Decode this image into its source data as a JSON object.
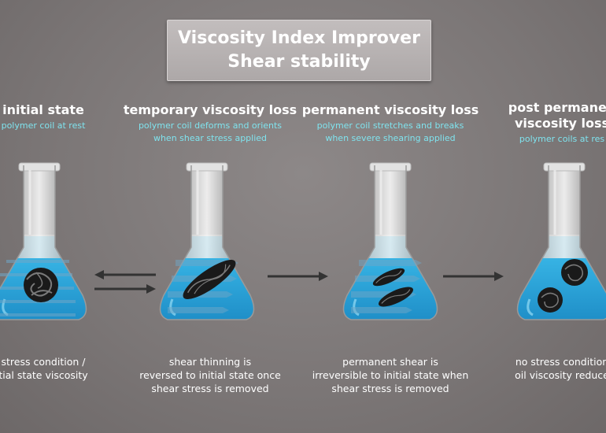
{
  "title": {
    "line1": "Viscosity Index Improver",
    "line2": "Shear stability"
  },
  "stages": [
    {
      "heading": [
        "initial state"
      ],
      "sub": [
        "polymer coil at rest"
      ],
      "caption": [
        "stress condition /",
        "tial state viscosity"
      ]
    },
    {
      "heading": [
        "temporary viscosity loss"
      ],
      "sub": [
        "polymer coil deforms and orients",
        "when shear stress applied"
      ],
      "caption": [
        "shear thinning is",
        "reversed to initial state once",
        "shear stress is removed"
      ]
    },
    {
      "heading": [
        "permanent viscosity loss"
      ],
      "sub": [
        "polymer coil stretches and breaks",
        "when severe shearing applied"
      ],
      "caption": [
        "permanent shear is",
        "irreversible to initial state when",
        "shear stress is removed"
      ]
    },
    {
      "heading": [
        "post permanen",
        "viscosity loss"
      ],
      "sub": [
        "polymer coils at res"
      ],
      "caption": [
        "no stress condition",
        "oil viscosity reduce"
      ]
    }
  ],
  "colors": {
    "background": "#7b7676",
    "liquid": "#2aa7dc",
    "subtitle": "#7fe3ee",
    "arrow": "#333333"
  }
}
